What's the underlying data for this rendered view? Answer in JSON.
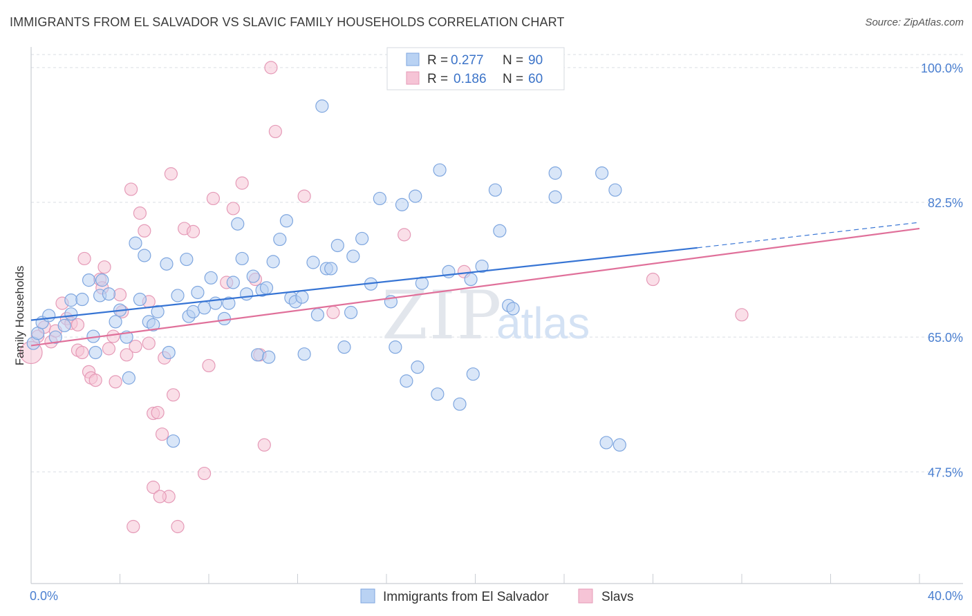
{
  "title": "IMMIGRANTS FROM EL SALVADOR VS SLAVIC FAMILY HOUSEHOLDS CORRELATION CHART",
  "source": "Source: ZipAtlas.com",
  "watermark": {
    "zip": "ZIP",
    "atlas": "atlas"
  },
  "colors": {
    "blue": "#3674d4",
    "blue_fill": "#b9d2f3",
    "pink": "#e0709a",
    "pink_fill": "#f6c4d6",
    "grid": "#d9dde3",
    "tick": "#4a7fd0"
  },
  "legend": {
    "series1": {
      "r_label": "R =",
      "r_value": "0.277",
      "n_label": "N =",
      "n_value": "90"
    },
    "series2": {
      "r_label": "R =",
      "r_value": "0.186",
      "n_label": "N =",
      "n_value": "60"
    }
  },
  "chart_data": {
    "type": "scatter",
    "title": "IMMIGRANTS FROM EL SALVADOR VS SLAVIC FAMILY HOUSEHOLDS CORRELATION CHART",
    "xlabel": "",
    "ylabel": "Family Households",
    "xlim": [
      0,
      40
    ],
    "ylim": [
      33.0,
      102.5
    ],
    "x_tick_labels": [
      "0.0%",
      "40.0%"
    ],
    "y_ticks": [
      47.5,
      65.0,
      82.5,
      100.0
    ],
    "y_tick_labels": [
      "47.5%",
      "65.0%",
      "82.5%",
      "100.0%"
    ],
    "legend_position": "top-center",
    "series": [
      {
        "name": "Immigrants from El Salvador",
        "color": "#3674d4",
        "trend": {
          "x0": 0,
          "y0": 67.2,
          "x1": 30,
          "y1": 76.6,
          "dashed_to_x": 40,
          "dashed_to_y": 79.9
        },
        "points": [
          [
            0.1,
            64.2
          ],
          [
            0.3,
            65.5
          ],
          [
            0.5,
            66.9
          ],
          [
            0.8,
            67.8
          ],
          [
            1.1,
            65.0
          ],
          [
            1.5,
            66.5
          ],
          [
            1.8,
            68.0
          ],
          [
            1.8,
            69.8
          ],
          [
            2.3,
            69.9
          ],
          [
            2.6,
            72.4
          ],
          [
            2.8,
            65.1
          ],
          [
            2.9,
            63.0
          ],
          [
            3.1,
            70.4
          ],
          [
            3.2,
            72.4
          ],
          [
            3.5,
            70.6
          ],
          [
            3.8,
            67.0
          ],
          [
            4.0,
            68.5
          ],
          [
            4.3,
            65.0
          ],
          [
            4.4,
            59.7
          ],
          [
            4.7,
            77.2
          ],
          [
            4.9,
            69.9
          ],
          [
            5.1,
            75.6
          ],
          [
            5.3,
            67.0
          ],
          [
            5.5,
            66.6
          ],
          [
            5.7,
            68.3
          ],
          [
            6.1,
            74.5
          ],
          [
            6.2,
            63.0
          ],
          [
            6.4,
            51.5
          ],
          [
            6.6,
            70.4
          ],
          [
            7.0,
            75.1
          ],
          [
            7.1,
            67.7
          ],
          [
            7.3,
            68.3
          ],
          [
            7.5,
            70.8
          ],
          [
            7.8,
            68.8
          ],
          [
            8.1,
            72.7
          ],
          [
            8.3,
            69.4
          ],
          [
            8.7,
            67.4
          ],
          [
            8.9,
            69.4
          ],
          [
            9.1,
            72.1
          ],
          [
            9.3,
            79.7
          ],
          [
            9.5,
            75.2
          ],
          [
            9.7,
            70.6
          ],
          [
            10.0,
            72.9
          ],
          [
            10.2,
            62.7
          ],
          [
            10.4,
            71.1
          ],
          [
            10.6,
            71.4
          ],
          [
            10.7,
            62.4
          ],
          [
            10.9,
            74.8
          ],
          [
            11.2,
            77.7
          ],
          [
            11.5,
            80.1
          ],
          [
            11.7,
            70.1
          ],
          [
            11.9,
            69.6
          ],
          [
            12.2,
            70.2
          ],
          [
            12.3,
            62.8
          ],
          [
            12.7,
            74.7
          ],
          [
            12.9,
            67.9
          ],
          [
            13.1,
            95.0
          ],
          [
            13.3,
            73.9
          ],
          [
            13.5,
            73.9
          ],
          [
            13.8,
            76.9
          ],
          [
            14.1,
            63.7
          ],
          [
            14.4,
            68.2
          ],
          [
            14.5,
            75.5
          ],
          [
            14.9,
            77.8
          ],
          [
            15.3,
            71.9
          ],
          [
            15.7,
            83.0
          ],
          [
            16.2,
            69.6
          ],
          [
            16.4,
            63.7
          ],
          [
            16.7,
            82.2
          ],
          [
            16.9,
            59.3
          ],
          [
            17.3,
            83.3
          ],
          [
            17.4,
            61.1
          ],
          [
            17.6,
            72.0
          ],
          [
            18.3,
            57.6
          ],
          [
            18.4,
            86.7
          ],
          [
            18.8,
            73.5
          ],
          [
            19.3,
            56.3
          ],
          [
            19.8,
            72.5
          ],
          [
            19.9,
            60.2
          ],
          [
            20.3,
            74.2
          ],
          [
            20.9,
            84.1
          ],
          [
            21.1,
            78.8
          ],
          [
            21.5,
            69.1
          ],
          [
            21.7,
            68.7
          ],
          [
            23.6,
            86.3
          ],
          [
            23.6,
            83.2
          ],
          [
            25.7,
            86.3
          ],
          [
            25.9,
            51.3
          ],
          [
            26.3,
            84.1
          ],
          [
            26.5,
            51.0
          ]
        ]
      },
      {
        "name": "Slavs",
        "color": "#e0709a",
        "trend": {
          "x0": 0,
          "y0": 63.9,
          "x1": 40,
          "y1": 79.1
        },
        "points": [
          [
            0.0,
            63.0
          ],
          [
            0.3,
            65.1
          ],
          [
            0.6,
            66.3
          ],
          [
            0.9,
            64.4
          ],
          [
            1.1,
            65.8
          ],
          [
            1.4,
            69.4
          ],
          [
            1.6,
            67.4
          ],
          [
            1.8,
            66.8
          ],
          [
            2.1,
            63.3
          ],
          [
            2.1,
            66.6
          ],
          [
            2.3,
            63.0
          ],
          [
            2.4,
            75.2
          ],
          [
            2.6,
            60.5
          ],
          [
            2.7,
            59.7
          ],
          [
            2.9,
            59.4
          ],
          [
            3.1,
            72.5
          ],
          [
            3.2,
            71.4
          ],
          [
            3.3,
            74.1
          ],
          [
            3.5,
            63.5
          ],
          [
            3.7,
            65.1
          ],
          [
            3.8,
            59.2
          ],
          [
            4.0,
            70.5
          ],
          [
            4.3,
            62.7
          ],
          [
            4.5,
            84.2
          ],
          [
            4.7,
            63.8
          ],
          [
            4.9,
            81.1
          ],
          [
            5.1,
            78.8
          ],
          [
            5.3,
            69.6
          ],
          [
            5.5,
            55.1
          ],
          [
            5.7,
            55.2
          ],
          [
            5.9,
            52.4
          ],
          [
            6.0,
            62.3
          ],
          [
            6.2,
            44.3
          ],
          [
            6.3,
            86.2
          ],
          [
            6.4,
            57.5
          ],
          [
            6.6,
            40.4
          ],
          [
            6.9,
            79.1
          ],
          [
            7.3,
            78.7
          ],
          [
            7.8,
            47.3
          ],
          [
            8.0,
            61.3
          ],
          [
            8.2,
            83.0
          ],
          [
            8.8,
            72.1
          ],
          [
            9.1,
            81.7
          ],
          [
            9.5,
            85.0
          ],
          [
            10.1,
            72.5
          ],
          [
            10.3,
            62.7
          ],
          [
            10.5,
            51.0
          ],
          [
            10.8,
            100.0
          ],
          [
            11.0,
            91.7
          ],
          [
            12.3,
            83.3
          ],
          [
            13.6,
            68.2
          ],
          [
            16.8,
            78.3
          ],
          [
            19.5,
            73.5
          ],
          [
            28.0,
            72.5
          ],
          [
            32.0,
            67.9
          ],
          [
            4.6,
            40.4
          ],
          [
            5.5,
            45.5
          ],
          [
            5.8,
            44.3
          ],
          [
            5.3,
            64.2
          ],
          [
            4.1,
            68.3
          ]
        ]
      }
    ]
  },
  "x_axis": {
    "left_label": "0.0%",
    "right_label": "40.0%"
  },
  "bottom_legend": {
    "series1": "Immigrants from El Salvador",
    "series2": "Slavs"
  }
}
